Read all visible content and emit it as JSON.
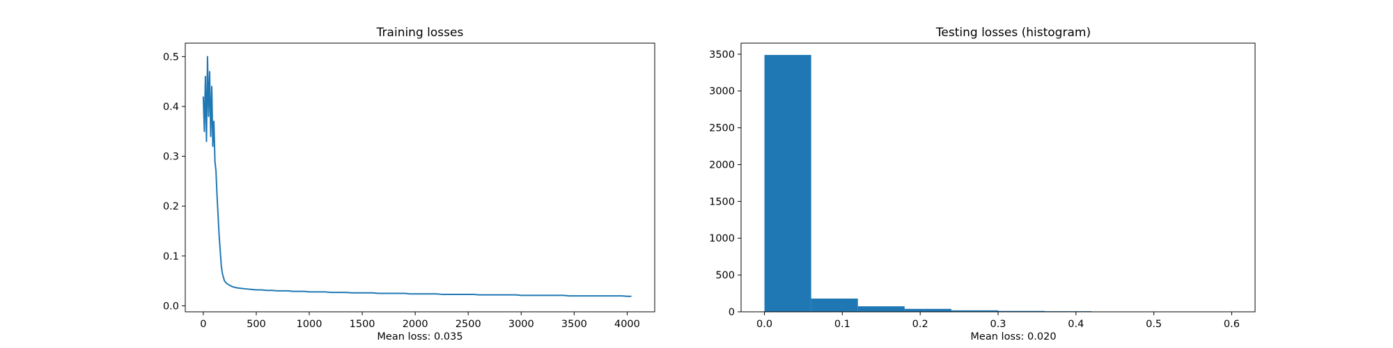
{
  "figure": {
    "background": "#ffffff",
    "series_color": "#1f77b4"
  },
  "chart_data": [
    {
      "type": "line",
      "title": "Training losses",
      "xlabel": "Mean loss: 0.035",
      "ylabel": "",
      "xlim": [
        -170,
        4260
      ],
      "ylim": [
        -0.012,
        0.527
      ],
      "xticks": [
        0,
        500,
        1000,
        1500,
        2000,
        2500,
        3000,
        3500,
        4000
      ],
      "xtick_labels": [
        "0",
        "500",
        "1000",
        "1500",
        "2000",
        "2500",
        "3000",
        "3500",
        "4000"
      ],
      "yticks": [
        0.0,
        0.1,
        0.2,
        0.3,
        0.4,
        0.5
      ],
      "ytick_labels": [
        "0.0",
        "0.1",
        "0.2",
        "0.3",
        "0.4",
        "0.5"
      ],
      "grid": false,
      "legend": "none",
      "series": [
        {
          "x": [
            0,
            10,
            20,
            30,
            40,
            50,
            60,
            70,
            80,
            90,
            100,
            110,
            120,
            130,
            140,
            150,
            160,
            170,
            180,
            200,
            220,
            250,
            280,
            320,
            360,
            400,
            450,
            500,
            550,
            600,
            650,
            700,
            750,
            800,
            850,
            900,
            950,
            1000,
            1050,
            1100,
            1150,
            1200,
            1250,
            1300,
            1350,
            1400,
            1450,
            1500,
            1550,
            1600,
            1650,
            1700,
            1750,
            1800,
            1850,
            1900,
            1950,
            2000,
            2050,
            2100,
            2150,
            2200,
            2250,
            2300,
            2350,
            2400,
            2450,
            2500,
            2550,
            2600,
            2650,
            2700,
            2750,
            2800,
            2850,
            2900,
            2950,
            3000,
            3050,
            3100,
            3150,
            3200,
            3250,
            3300,
            3350,
            3400,
            3450,
            3500,
            3550,
            3600,
            3650,
            3700,
            3750,
            3800,
            3850,
            3900,
            3950,
            4000,
            4040
          ],
          "y": [
            0.42,
            0.35,
            0.46,
            0.33,
            0.5,
            0.38,
            0.47,
            0.34,
            0.44,
            0.32,
            0.37,
            0.29,
            0.27,
            0.22,
            0.18,
            0.14,
            0.11,
            0.08,
            0.065,
            0.05,
            0.045,
            0.041,
            0.038,
            0.036,
            0.035,
            0.034,
            0.033,
            0.032,
            0.032,
            0.031,
            0.031,
            0.03,
            0.03,
            0.03,
            0.029,
            0.029,
            0.029,
            0.028,
            0.028,
            0.028,
            0.028,
            0.027,
            0.027,
            0.027,
            0.027,
            0.026,
            0.026,
            0.026,
            0.026,
            0.026,
            0.025,
            0.025,
            0.025,
            0.025,
            0.025,
            0.025,
            0.024,
            0.024,
            0.024,
            0.024,
            0.024,
            0.024,
            0.023,
            0.023,
            0.023,
            0.023,
            0.023,
            0.023,
            0.023,
            0.022,
            0.022,
            0.022,
            0.022,
            0.022,
            0.022,
            0.022,
            0.022,
            0.021,
            0.021,
            0.021,
            0.021,
            0.021,
            0.021,
            0.021,
            0.021,
            0.021,
            0.02,
            0.02,
            0.02,
            0.02,
            0.02,
            0.02,
            0.02,
            0.02,
            0.02,
            0.02,
            0.02,
            0.019,
            0.019
          ]
        }
      ]
    },
    {
      "type": "bar",
      "title": "Testing losses (histogram)",
      "xlabel": "Mean loss: 0.020",
      "ylabel": "",
      "xlim": [
        -0.03,
        0.63
      ],
      "ylim": [
        0,
        3650
      ],
      "xticks": [
        0.0,
        0.1,
        0.2,
        0.3,
        0.4,
        0.5,
        0.6
      ],
      "xtick_labels": [
        "0.0",
        "0.1",
        "0.2",
        "0.3",
        "0.4",
        "0.5",
        "0.6"
      ],
      "yticks": [
        0,
        500,
        1000,
        1500,
        2000,
        2500,
        3000,
        3500
      ],
      "ytick_labels": [
        "0",
        "500",
        "1000",
        "1500",
        "2000",
        "2500",
        "3000",
        "3500"
      ],
      "grid": false,
      "legend": "none",
      "bin_edges": [
        0.0,
        0.06,
        0.12,
        0.18,
        0.24,
        0.3,
        0.36,
        0.42,
        0.48,
        0.54,
        0.6
      ],
      "counts": [
        3490,
        180,
        75,
        40,
        20,
        12,
        8,
        4,
        2,
        1
      ]
    }
  ]
}
